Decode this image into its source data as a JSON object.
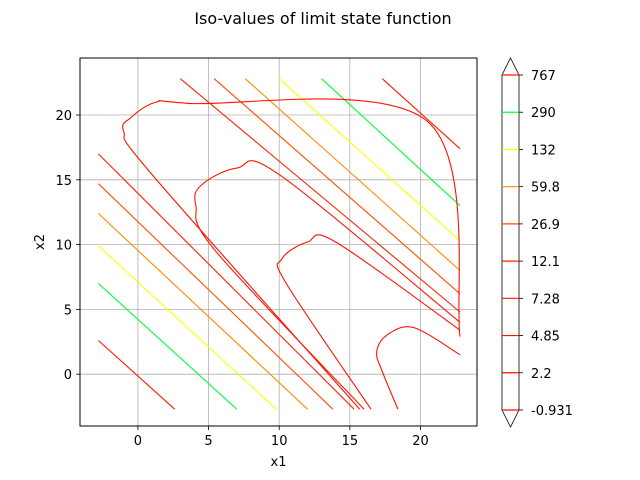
{
  "chart_data": {
    "type": "contour",
    "title": "Iso-values of limit state function",
    "xlabel": "x1",
    "ylabel": "x2",
    "xlim": [
      -4.1,
      24.0
    ],
    "ylim": [
      -4.0,
      24.4
    ],
    "xticks": [
      0,
      5,
      10,
      15,
      20
    ],
    "yticks": [
      0,
      5,
      10,
      15,
      20
    ],
    "grid": true,
    "colorbar": {
      "ticks": [
        "767",
        "290",
        "132",
        "59.8",
        "26.9",
        "12.1",
        "7.28",
        "4.85",
        "2.2",
        "-0.931"
      ],
      "colors": [
        "#ff1a00",
        "#00ff3a",
        "#ffff00",
        "#ff8c00",
        "#ff4d00",
        "#ff2200",
        "#ff1800",
        "#ff1000",
        "#ff1000",
        "#ff1000"
      ],
      "extend": "both"
    },
    "levels": [
      {
        "level": "767",
        "color": "#ff1a00",
        "lines": [
          [
            [
              17.3,
              22.8
            ],
            [
              22.8,
              17.4
            ]
          ],
          [
            [
              -2.8,
              2.6
            ],
            [
              2.6,
              -2.7
            ]
          ]
        ]
      },
      {
        "level": "290",
        "color": "#00ff3a",
        "lines": [
          [
            [
              13.0,
              22.8
            ],
            [
              22.8,
              13.0
            ]
          ],
          [
            [
              -2.8,
              7.0
            ],
            [
              7.0,
              -2.7
            ]
          ]
        ]
      },
      {
        "level": "132",
        "color": "#ffff00",
        "lines": [
          [
            [
              10.0,
              22.8
            ],
            [
              22.8,
              10.3
            ]
          ],
          [
            [
              -2.8,
              9.9
            ],
            [
              9.8,
              -2.7
            ]
          ]
        ]
      },
      {
        "level": "59.8",
        "color": "#ff8c00",
        "lines": [
          [
            [
              7.6,
              22.8
            ],
            [
              22.8,
              8.0
            ]
          ],
          [
            [
              -2.8,
              12.4
            ],
            [
              12.0,
              -2.7
            ]
          ]
        ]
      },
      {
        "level": "26.9",
        "color": "#ff4d00",
        "lines": [
          [
            [
              5.4,
              22.8
            ],
            [
              22.8,
              6.2
            ]
          ],
          [
            [
              -2.8,
              14.7
            ],
            [
              13.8,
              -2.7
            ]
          ]
        ]
      },
      {
        "level": "12.1",
        "color": "#ff2200",
        "lines": [
          [
            [
              3.0,
              22.8
            ],
            [
              22.8,
              4.8
            ]
          ],
          [
            [
              -2.8,
              17.0
            ],
            [
              15.3,
              -2.7
            ]
          ]
        ]
      },
      {
        "level": "7.28",
        "color": "#ff1800",
        "lines": [
          [
            [
              22.8,
              4.0
            ],
            [
              10.0,
              15.4
            ],
            [
              7.0,
              15.9
            ],
            [
              4.5,
              14.6
            ],
            [
              4.1,
              13.0
            ],
            [
              5.5,
              9.5
            ],
            [
              16.0,
              -2.7
            ]
          ]
        ]
      },
      {
        "level": "4.85",
        "color": "#ff1000",
        "lines": [
          [
            [
              22.8,
              3.4
            ],
            [
              14.0,
              10.2
            ],
            [
              12.0,
              10.2
            ],
            [
              10.2,
              8.9
            ],
            [
              10.5,
              7.0
            ],
            [
              16.5,
              -2.7
            ]
          ]
        ]
      },
      {
        "level": "2.2",
        "color": "#ff1000",
        "lines": [
          [
            [
              22.8,
              2.9
            ],
            [
              20.5,
              19.5
            ],
            [
              3.6,
              20.9
            ],
            [
              1.3,
              21.0
            ],
            [
              -0.5,
              19.8
            ],
            [
              -1.0,
              18.7
            ],
            [
              1.0,
              15.4
            ],
            [
              15.7,
              -2.7
            ]
          ]
        ]
      },
      {
        "level": "-0.931",
        "color": "#ff1000",
        "lines": [
          [
            [
              22.8,
              1.5
            ],
            [
              19.5,
              3.6
            ],
            [
              17.6,
              3.0
            ],
            [
              16.9,
              1.7
            ],
            [
              17.3,
              0.2
            ],
            [
              18.4,
              -2.7
            ]
          ]
        ]
      }
    ]
  }
}
